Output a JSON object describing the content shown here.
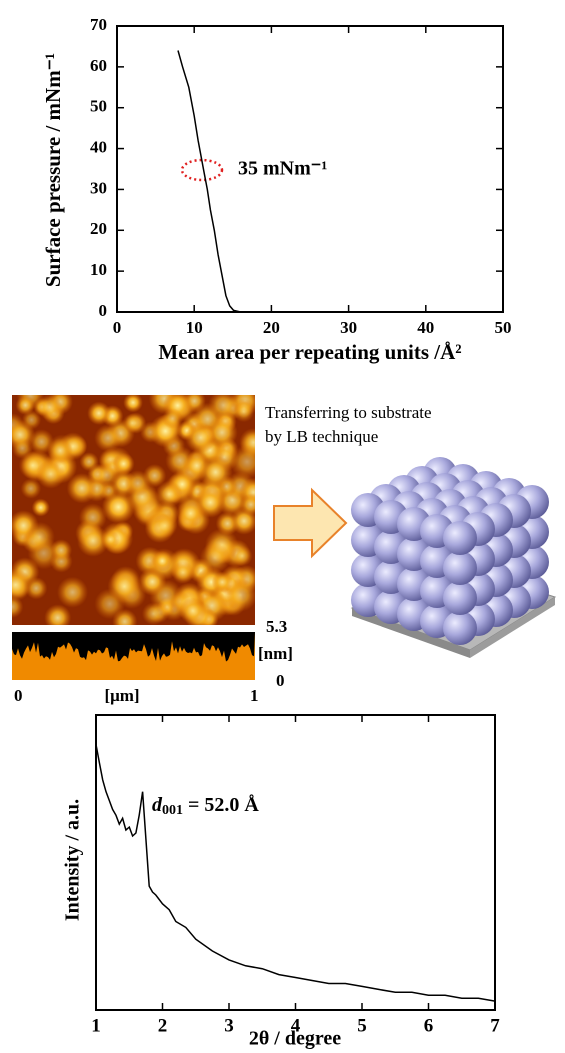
{
  "chart_data": [
    {
      "type": "line",
      "ylabel": "Surface pressure / mNm⁻¹",
      "xlabel": "Mean area per repeating units /Å²",
      "annotation": "35 mNm⁻¹",
      "x": [
        7.9,
        8.5,
        9.3,
        10,
        10.5,
        11,
        11.3,
        11.7,
        12.1,
        12.6,
        13.1,
        13.6,
        14.1,
        14.6,
        15.1,
        16
      ],
      "values": [
        64,
        60,
        55,
        48,
        42,
        37,
        34,
        30,
        25,
        20,
        14,
        9,
        4,
        1.5,
        0.4,
        0
      ],
      "color": "#000000",
      "xlim": [
        0,
        50
      ],
      "ylim": [
        0,
        70
      ],
      "xticks": [
        0,
        10,
        20,
        30,
        40,
        50
      ],
      "yticks": [
        0,
        10,
        20,
        30,
        40,
        50,
        60,
        70
      ]
    },
    {
      "type": "line",
      "ylabel": "Intensity / a.u.",
      "xlabel": "2θ / degree",
      "annotation": {
        "symbol": "d",
        "subscript": "001",
        "text": " = 52.0 Å"
      },
      "x": [
        1,
        1.05,
        1.1,
        1.15,
        1.2,
        1.25,
        1.3,
        1.35,
        1.4,
        1.45,
        1.5,
        1.55,
        1.6,
        1.65,
        1.7,
        1.75,
        1.8,
        1.85,
        1.9,
        2,
        2.1,
        2.2,
        2.35,
        2.5,
        2.75,
        3,
        3.25,
        3.5,
        3.75,
        4,
        4.25,
        4.5,
        4.75,
        5,
        5.25,
        5.5,
        5.75,
        6,
        6.25,
        6.5,
        6.75,
        7
      ],
      "values": [
        90,
        84,
        78,
        74,
        71,
        68,
        66,
        63,
        65,
        61,
        62,
        59,
        60,
        66,
        74,
        58,
        42,
        40,
        39,
        36,
        34,
        30,
        28,
        24,
        20,
        17,
        15,
        14,
        12,
        11,
        10,
        9,
        9,
        8,
        7,
        6,
        6,
        5,
        5,
        4,
        4,
        3
      ],
      "color": "#000000",
      "xlim": [
        1,
        7
      ],
      "ylim": [
        0,
        100
      ],
      "xticks": [
        1,
        2,
        3,
        4,
        5,
        6,
        7
      ]
    }
  ],
  "afm": {
    "scale_max": 5.3,
    "scale_unit": "[nm]",
    "scale_min": 0,
    "x_start": 0,
    "x_unit": "[μm]",
    "x_end": 1
  },
  "schematic": {
    "caption": [
      "Transferring to substrate",
      "by LB technique"
    ]
  }
}
